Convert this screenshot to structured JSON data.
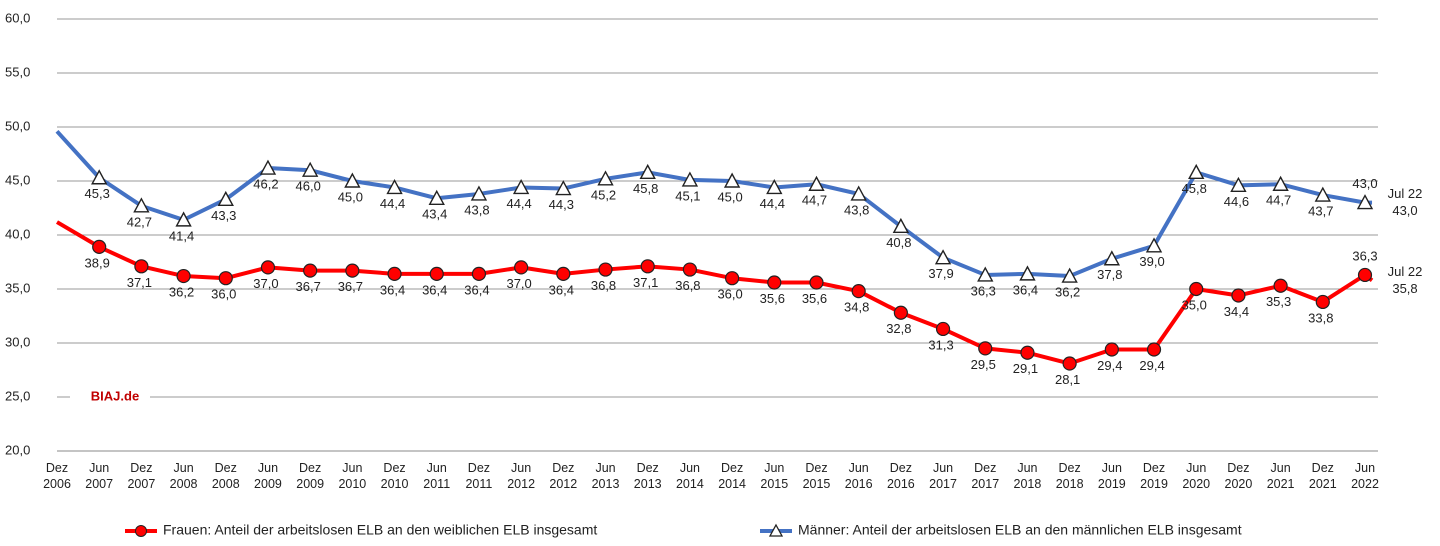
{
  "chart_data": {
    "type": "line",
    "categories": [
      "Dez 2006",
      "Jun 2007",
      "Dez 2007",
      "Jun 2008",
      "Dez 2008",
      "Jun 2009",
      "Dez 2009",
      "Jun 2010",
      "Dez 2010",
      "Jun 2011",
      "Dez 2011",
      "Jun 2012",
      "Dez 2012",
      "Jun 2013",
      "Dez 2013",
      "Jun 2014",
      "Dez 2014",
      "Jun 2015",
      "Dez 2015",
      "Jun 2016",
      "Dez 2016",
      "Jun 2017",
      "Dez 2017",
      "Jun 2018",
      "Dez 2018",
      "Jun 2019",
      "Dez 2019",
      "Jun 2020",
      "Dez 2020",
      "Jun 2021",
      "Dez 2021",
      "Jun 2022",
      "Jul 22"
    ],
    "series": [
      {
        "name": "Frauen: Anteil der arbeitslosen ELB an den weiblichen ELB insgesamt",
        "color": "#ff0000",
        "marker": "circle",
        "values": [
          41.2,
          38.9,
          37.1,
          36.2,
          36.0,
          37.0,
          36.7,
          36.7,
          36.4,
          36.4,
          36.4,
          37.0,
          36.4,
          36.8,
          37.1,
          36.8,
          36.0,
          35.6,
          35.6,
          34.8,
          32.8,
          31.3,
          29.5,
          29.1,
          28.1,
          29.4,
          29.4,
          35.0,
          34.4,
          35.3,
          33.8,
          36.3,
          35.8
        ],
        "value_labels": [
          null,
          "38,9",
          "37,1",
          "36,2",
          "36,0",
          "37,0",
          "36,7",
          "36,7",
          "36,4",
          "36,4",
          "36,4",
          "37,0",
          "36,4",
          "36,8",
          "37,1",
          "36,8",
          "36,0",
          "35,6",
          "35,6",
          "34,8",
          "32,8",
          "31,3",
          "29,5",
          "29,1",
          "28,1",
          "29,4",
          "29,4",
          "35,0",
          "34,4",
          "35,3",
          "33,8",
          "36,3",
          "35,8"
        ]
      },
      {
        "name": "Männer: Anteil der arbeitslosen ELB an den männlichen ELB insgesamt",
        "color": "#4472c4",
        "marker": "triangle",
        "values": [
          49.6,
          45.3,
          42.7,
          41.4,
          43.3,
          46.2,
          46.0,
          45.0,
          44.4,
          43.4,
          43.8,
          44.4,
          44.3,
          45.2,
          45.8,
          45.1,
          45.0,
          44.4,
          44.7,
          43.8,
          40.8,
          37.9,
          36.3,
          36.4,
          36.2,
          37.8,
          39.0,
          45.8,
          44.6,
          44.7,
          43.7,
          43.0,
          43.0
        ],
        "value_labels": [
          null,
          "45,3",
          "42,7",
          "41,4",
          "43,3",
          "46,2",
          "46,0",
          "45,0",
          "44,4",
          "43,4",
          "43,8",
          "44,4",
          "44,3",
          "45,2",
          "45,8",
          "45,1",
          "45,0",
          "44,4",
          "44,7",
          "43,8",
          "40,8",
          "37,9",
          "36,3",
          "36,4",
          "36,2",
          "37,8",
          "39,0",
          "45,8",
          "44,6",
          "44,7",
          "43,7",
          "43,0",
          "43,0"
        ]
      }
    ],
    "ylim": [
      20,
      60
    ],
    "yticks": [
      {
        "value": 20,
        "label": "20,0"
      },
      {
        "value": 25,
        "label": "25,0"
      },
      {
        "value": 30,
        "label": "30,0"
      },
      {
        "value": 35,
        "label": "35,0"
      },
      {
        "value": 40,
        "label": "40,0"
      },
      {
        "value": 45,
        "label": "45,0"
      },
      {
        "value": 50,
        "label": "50,0"
      },
      {
        "value": 55,
        "label": "55,0"
      },
      {
        "value": 60,
        "label": "60,0"
      }
    ],
    "grid": true,
    "annotation": "BIAJ.de"
  }
}
